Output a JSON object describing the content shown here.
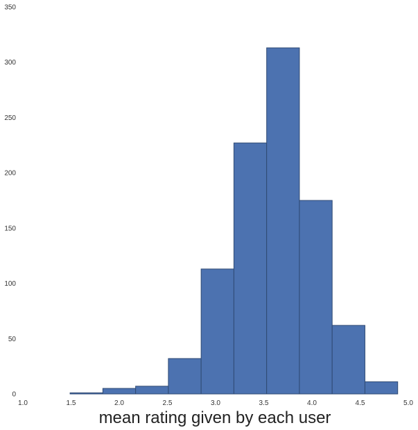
{
  "chart_data": {
    "type": "bar",
    "subtype": "histogram",
    "title": "",
    "xlabel": "mean rating given by each user",
    "ylabel": "",
    "xlim": [
      1.0,
      5.0
    ],
    "ylim": [
      0,
      350
    ],
    "xticks": [
      "1.0",
      "1.5",
      "2.0",
      "2.5",
      "3.0",
      "3.5",
      "4.0",
      "4.5",
      "5.0"
    ],
    "yticks": [
      "0",
      "50",
      "100",
      "150",
      "200",
      "250",
      "300",
      "350"
    ],
    "bins": [
      {
        "x0": 1.49,
        "x1": 1.83,
        "count": 1
      },
      {
        "x0": 1.83,
        "x1": 2.17,
        "count": 5
      },
      {
        "x0": 2.17,
        "x1": 2.51,
        "count": 7
      },
      {
        "x0": 2.51,
        "x1": 2.85,
        "count": 32
      },
      {
        "x0": 2.85,
        "x1": 3.19,
        "count": 113
      },
      {
        "x0": 3.19,
        "x1": 3.53,
        "count": 227
      },
      {
        "x0": 3.53,
        "x1": 3.87,
        "count": 313
      },
      {
        "x0": 3.87,
        "x1": 4.21,
        "count": 175
      },
      {
        "x0": 4.21,
        "x1": 4.55,
        "count": 62
      },
      {
        "x0": 4.55,
        "x1": 4.89,
        "count": 11
      }
    ],
    "grid": false,
    "colors": {
      "bar": "#4c72b0",
      "edge": "#2f4a73"
    }
  }
}
